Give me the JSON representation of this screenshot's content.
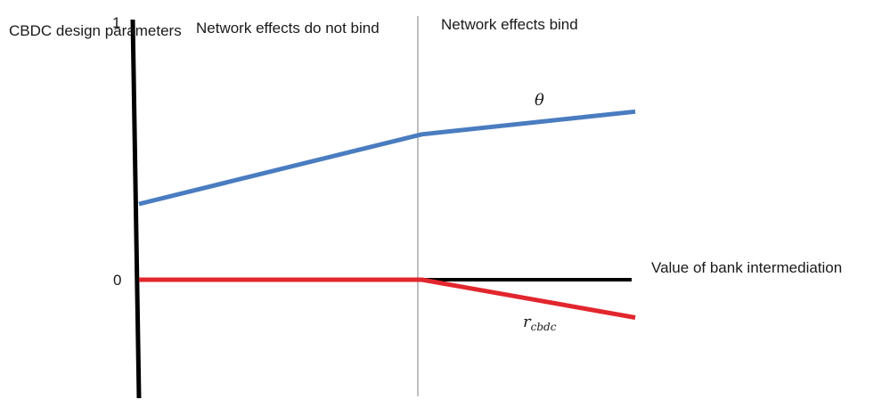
{
  "chart_data": {
    "type": "line",
    "ylabel": "CBDC design parameters",
    "xlabel": "Value of bank intermediation",
    "y_ticks": [
      "1",
      "0"
    ],
    "regions": [
      {
        "label": "Network effects do not bind"
      },
      {
        "label": "Network effects bind"
      }
    ],
    "series": [
      {
        "name": "θ",
        "color": "#4a7cc0",
        "points": [
          {
            "x": 0.0,
            "y": 0.5
          },
          {
            "x": 0.57,
            "y": 0.96
          },
          {
            "x": 1.0,
            "y": 1.11
          }
        ]
      },
      {
        "name_base": "r",
        "name_sub": "cbdc",
        "color": "#e2262d",
        "points": [
          {
            "x": 0.0,
            "y": 0.0
          },
          {
            "x": 0.57,
            "y": 0.0
          },
          {
            "x": 1.0,
            "y": -0.25
          }
        ]
      }
    ],
    "axis_color": "#000000",
    "divider_color": "#a6a6a6",
    "xlim": [
      0,
      1
    ],
    "ylim": [
      -0.75,
      1.45
    ],
    "grid": false
  }
}
